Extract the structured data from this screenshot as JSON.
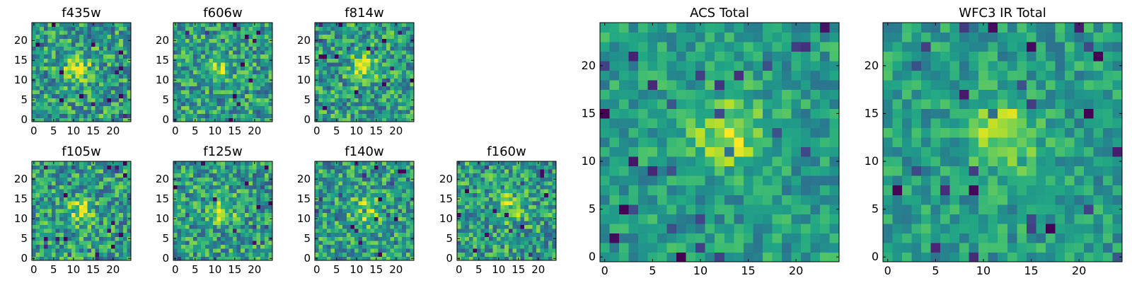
{
  "chart_data": [
    {
      "type": "heatmap",
      "title": "f435w",
      "xticks": [
        0,
        5,
        10,
        15,
        20
      ],
      "yticks": [
        0,
        5,
        10,
        15,
        20
      ],
      "xlim": [
        -0.5,
        24.5
      ],
      "ylim": [
        -0.5,
        24.5
      ],
      "grid": false,
      "legend": "none",
      "colormap": "viridis",
      "cells": 25,
      "peak": [
        11,
        13
      ]
    },
    {
      "type": "heatmap",
      "title": "f606w",
      "xticks": [
        0,
        5,
        10,
        15,
        20
      ],
      "yticks": [
        0,
        5,
        10,
        15,
        20
      ],
      "xlim": [
        -0.5,
        24.5
      ],
      "ylim": [
        -0.5,
        24.5
      ],
      "grid": false,
      "legend": "none",
      "colormap": "viridis",
      "cells": 25,
      "peak": [
        11,
        13
      ]
    },
    {
      "type": "heatmap",
      "title": "f814w",
      "xticks": [
        0,
        5,
        10,
        15,
        20
      ],
      "yticks": [
        0,
        5,
        10,
        15,
        20
      ],
      "xlim": [
        -0.5,
        24.5
      ],
      "ylim": [
        -0.5,
        24.5
      ],
      "grid": false,
      "legend": "none",
      "colormap": "viridis",
      "cells": 25,
      "peak": [
        12,
        13
      ]
    },
    {
      "type": "heatmap",
      "title": "f105w",
      "xticks": [
        0,
        5,
        10,
        15,
        20
      ],
      "yticks": [
        0,
        5,
        10,
        15,
        20
      ],
      "xlim": [
        -0.5,
        24.5
      ],
      "ylim": [
        -0.5,
        24.5
      ],
      "grid": false,
      "legend": "none",
      "colormap": "viridis",
      "cells": 25,
      "peak": [
        12,
        12
      ]
    },
    {
      "type": "heatmap",
      "title": "f125w",
      "xticks": [
        0,
        5,
        10,
        15,
        20
      ],
      "yticks": [
        0,
        5,
        10,
        15,
        20
      ],
      "xlim": [
        -0.5,
        24.5
      ],
      "ylim": [
        -0.5,
        24.5
      ],
      "grid": false,
      "legend": "none",
      "colormap": "viridis",
      "cells": 25,
      "peak": [
        12,
        12
      ]
    },
    {
      "type": "heatmap",
      "title": "f140w",
      "xticks": [
        0,
        5,
        10,
        15,
        20
      ],
      "yticks": [
        0,
        5,
        10,
        15,
        20
      ],
      "xlim": [
        -0.5,
        24.5
      ],
      "ylim": [
        -0.5,
        24.5
      ],
      "grid": false,
      "legend": "none",
      "colormap": "viridis",
      "cells": 25,
      "peak": [
        12,
        12
      ]
    },
    {
      "type": "heatmap",
      "title": "f160w",
      "xticks": [
        0,
        5,
        10,
        15,
        20
      ],
      "yticks": [
        0,
        5,
        10,
        15,
        20
      ],
      "xlim": [
        -0.5,
        24.5
      ],
      "ylim": [
        -0.5,
        24.5
      ],
      "grid": false,
      "legend": "none",
      "colormap": "viridis",
      "cells": 25,
      "peak": [
        13,
        13
      ]
    },
    {
      "type": "heatmap",
      "title": "ACS Total",
      "xticks": [
        0,
        5,
        10,
        15,
        20
      ],
      "yticks": [
        0,
        5,
        10,
        15,
        20
      ],
      "xlim": [
        -0.5,
        24.5
      ],
      "ylim": [
        -0.5,
        24.5
      ],
      "grid": false,
      "legend": "none",
      "colormap": "viridis",
      "cells": 25,
      "peak": [
        13,
        13
      ]
    },
    {
      "type": "heatmap",
      "title": "WFC3 IR Total",
      "xticks": [
        0,
        5,
        10,
        15,
        20
      ],
      "yticks": [
        0,
        5,
        10,
        15,
        20
      ],
      "xlim": [
        -0.5,
        24.5
      ],
      "ylim": [
        -0.5,
        24.5
      ],
      "grid": false,
      "legend": "none",
      "colormap": "viridis",
      "cells": 25,
      "peak": [
        12,
        13
      ]
    }
  ]
}
